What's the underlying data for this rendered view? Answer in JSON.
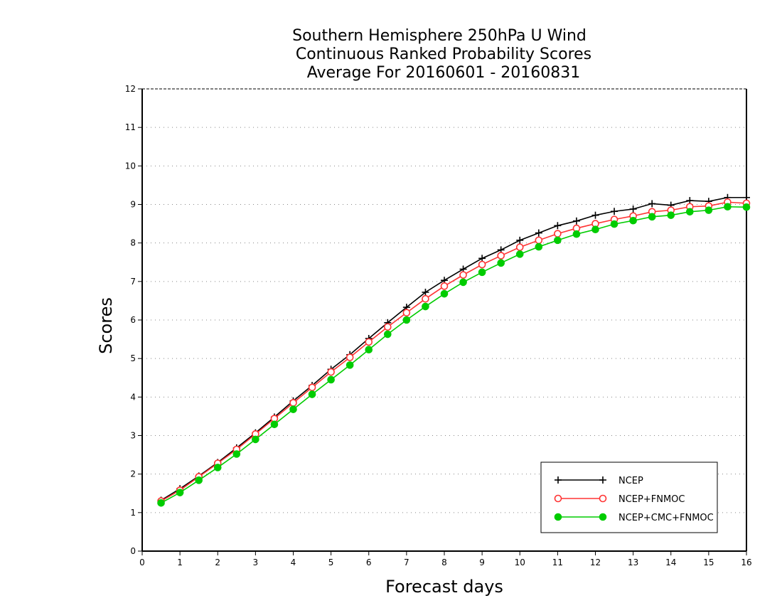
{
  "chart_data": {
    "type": "line",
    "title_lines": [
      "Southern Hemisphere 250hPa U Wind",
      "Continuous Ranked Probability Scores",
      "Average For 20160601 - 20160831"
    ],
    "xlabel": "Forecast days",
    "ylabel": "Scores",
    "xlim": [
      0,
      16
    ],
    "ylim": [
      0,
      12
    ],
    "xticks": [
      "0",
      "1",
      "2",
      "3",
      "4",
      "5",
      "6",
      "7",
      "8",
      "9",
      "10",
      "11",
      "12",
      "13",
      "14",
      "15",
      "16"
    ],
    "yticks": [
      "0",
      "1",
      "2",
      "3",
      "4",
      "5",
      "6",
      "7",
      "8",
      "9",
      "10",
      "11",
      "12"
    ],
    "grid": "horizontal dotted",
    "legend_position": "bottom-right",
    "x": [
      0.5,
      1,
      1.5,
      2,
      2.5,
      3,
      3.5,
      4,
      4.5,
      5,
      5.5,
      6,
      6.5,
      7,
      7.5,
      8,
      8.5,
      9,
      9.5,
      10,
      10.5,
      11,
      11.5,
      12,
      12.5,
      13,
      13.5,
      14,
      14.5,
      15,
      15.5,
      16
    ],
    "series": [
      {
        "name": "NCEP",
        "color": "#000000",
        "marker": "plus",
        "values": [
          1.32,
          1.62,
          1.95,
          2.3,
          2.68,
          3.07,
          3.48,
          3.9,
          4.3,
          4.72,
          5.1,
          5.52,
          5.93,
          6.33,
          6.72,
          7.03,
          7.32,
          7.6,
          7.82,
          8.07,
          8.26,
          8.45,
          8.57,
          8.72,
          8.82,
          8.88,
          9.02,
          8.98,
          9.1,
          9.08,
          9.18,
          9.18
        ]
      },
      {
        "name": "NCEP+FNMOC",
        "color": "#ff3333",
        "marker": "open-circle",
        "values": [
          1.3,
          1.58,
          1.93,
          2.28,
          2.64,
          3.04,
          3.44,
          3.85,
          4.25,
          4.65,
          5.03,
          5.43,
          5.82,
          6.19,
          6.55,
          6.88,
          7.17,
          7.44,
          7.67,
          7.89,
          8.07,
          8.24,
          8.38,
          8.5,
          8.61,
          8.7,
          8.81,
          8.85,
          8.94,
          8.96,
          9.06,
          9.03
        ]
      },
      {
        "name": "NCEP+CMC+FNMOC",
        "color": "#00cc00",
        "marker": "filled-circle",
        "values": [
          1.25,
          1.52,
          1.84,
          2.17,
          2.52,
          2.9,
          3.29,
          3.68,
          4.07,
          4.45,
          4.83,
          5.23,
          5.63,
          6.0,
          6.35,
          6.68,
          6.98,
          7.24,
          7.48,
          7.71,
          7.9,
          8.07,
          8.23,
          8.35,
          8.49,
          8.58,
          8.68,
          8.72,
          8.81,
          8.85,
          8.94,
          8.93
        ]
      }
    ]
  }
}
